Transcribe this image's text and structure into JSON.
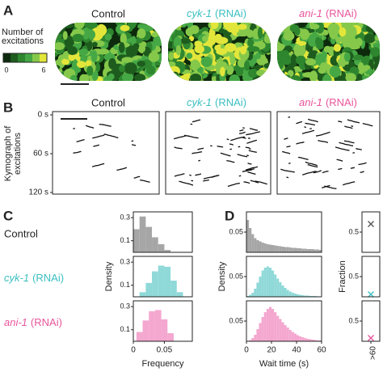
{
  "panel_labels": [
    "A",
    "B",
    "C",
    "D"
  ],
  "conditions": [
    {
      "name": "Control",
      "color": "#222222",
      "fill": "#a6a6a6"
    },
    {
      "gene": "cyk-1",
      "suffix": "(RNAi)",
      "color": "#3cbfc0",
      "fill": "#8fd9d8"
    },
    {
      "gene": "ani-1",
      "suffix": "(RNAi)",
      "color": "#e8559b",
      "fill": "#f4a7cf"
    }
  ],
  "colorbar": {
    "label": [
      "Number of",
      "excitations"
    ],
    "ticks": [
      0,
      6
    ]
  },
  "kymograph": {
    "ylabel": [
      "Kymograph of",
      "excitations"
    ],
    "ylim": [
      0,
      120
    ],
    "yticks": [
      {
        "value": 0,
        "label": "0 s"
      },
      {
        "value": 60,
        "label": "60 s"
      },
      {
        "value": 120,
        "label": "120 s"
      }
    ]
  },
  "chart_data": [
    {
      "type": "histogram",
      "bins": [
        0,
        0.01,
        0.02,
        0.03,
        0.04,
        0.05,
        0.06
      ],
      "values": [
        0.2,
        0.31,
        0.22,
        0.13,
        0.07,
        0.02
      ],
      "xlim": [
        0,
        0.095
      ],
      "ylim": [
        0,
        0.35
      ],
      "yticks": [
        0.1,
        0.3
      ]
    },
    {
      "type": "histogram",
      "bins": [
        0.01,
        0.02,
        0.03,
        0.04,
        0.05,
        0.06,
        0.07,
        0.08
      ],
      "values": [
        0.04,
        0.12,
        0.22,
        0.27,
        0.26,
        0.14,
        0.04
      ],
      "xlim": [
        0,
        0.095
      ],
      "ylim": [
        0,
        0.35
      ],
      "yticks": [
        0.1,
        0.3
      ],
      "ylabel": "Density"
    },
    {
      "type": "histogram",
      "bins": [
        0.005,
        0.015,
        0.025,
        0.035,
        0.045,
        0.055,
        0.065
      ],
      "values": [
        0.08,
        0.18,
        0.26,
        0.27,
        0.19,
        0.07
      ],
      "xlim": [
        0,
        0.095
      ],
      "ylim": [
        0,
        0.35
      ],
      "yticks": [
        0.1,
        0.3
      ],
      "xticks": [
        0,
        0.05
      ],
      "xlabel": "Frequency"
    },
    {
      "type": "histogram",
      "bins": [
        0,
        2,
        4,
        6,
        8,
        10,
        12,
        14,
        16,
        18,
        20,
        22,
        24,
        26,
        28,
        30,
        32,
        34,
        36,
        38,
        40,
        42,
        44,
        46,
        48,
        50,
        52,
        54,
        56,
        58,
        60
      ],
      "values": [
        0.08,
        0.06,
        0.045,
        0.035,
        0.03,
        0.027,
        0.024,
        0.022,
        0.02,
        0.019,
        0.018,
        0.017,
        0.016,
        0.015,
        0.014,
        0.013,
        0.013,
        0.012,
        0.011,
        0.011,
        0.01,
        0.01,
        0.009,
        0.009,
        0.008,
        0.008,
        0.008,
        0.007,
        0.007,
        0.006
      ],
      "xlim": [
        0,
        60
      ],
      "ylim": [
        0,
        0.1
      ],
      "yticks": [
        0.05
      ]
    },
    {
      "type": "histogram",
      "bins": [
        0,
        2,
        4,
        6,
        8,
        10,
        12,
        14,
        16,
        18,
        20,
        22,
        24,
        26,
        28,
        30,
        32,
        34,
        36,
        38,
        40,
        42,
        44,
        46,
        48,
        50,
        52,
        54,
        56,
        58,
        60
      ],
      "values": [
        0.002,
        0.005,
        0.01,
        0.02,
        0.035,
        0.05,
        0.065,
        0.072,
        0.075,
        0.072,
        0.065,
        0.055,
        0.045,
        0.036,
        0.028,
        0.022,
        0.017,
        0.013,
        0.01,
        0.008,
        0.006,
        0.005,
        0.004,
        0.003,
        0.003,
        0.002,
        0.002,
        0.002,
        0.001,
        0.001
      ],
      "xlim": [
        0,
        60
      ],
      "ylim": [
        0,
        0.1
      ],
      "yticks": [
        0.05
      ],
      "ylabel": "Density"
    },
    {
      "type": "histogram",
      "bins": [
        0,
        2,
        4,
        6,
        8,
        10,
        12,
        14,
        16,
        18,
        20,
        22,
        24,
        26,
        28,
        30,
        32,
        34,
        36,
        38,
        40,
        42,
        44,
        46,
        48,
        50,
        52,
        54,
        56,
        58,
        60
      ],
      "values": [
        0.001,
        0.003,
        0.008,
        0.016,
        0.03,
        0.045,
        0.06,
        0.072,
        0.08,
        0.085,
        0.08,
        0.072,
        0.063,
        0.055,
        0.047,
        0.04,
        0.034,
        0.028,
        0.023,
        0.019,
        0.015,
        0.012,
        0.01,
        0.008,
        0.006,
        0.005,
        0.004,
        0.003,
        0.002,
        0.002
      ],
      "xlim": [
        0,
        60
      ],
      "ylim": [
        0,
        0.1
      ],
      "yticks": [
        0.05
      ],
      "xticks": [
        0,
        20,
        40,
        60
      ],
      "xlabel": "Wait time (s)"
    },
    {
      "type": "scatter",
      "values": [
        0.7
      ],
      "ylim": [
        0,
        1
      ],
      "yticks": [
        0.5
      ],
      "marker": "x",
      "color": "#555555"
    },
    {
      "type": "scatter",
      "values": [
        0.06
      ],
      "ylim": [
        0,
        1
      ],
      "yticks": [
        0.5
      ],
      "marker": "x",
      "color": "#3cbfc0",
      "ylabel": "Fraction"
    },
    {
      "type": "scatter",
      "values": [
        0.08
      ],
      "ylim": [
        0,
        1
      ],
      "yticks": [
        0.5
      ],
      "marker": "x",
      "color": "#e8559b",
      "categories": [
        ">60"
      ]
    }
  ]
}
